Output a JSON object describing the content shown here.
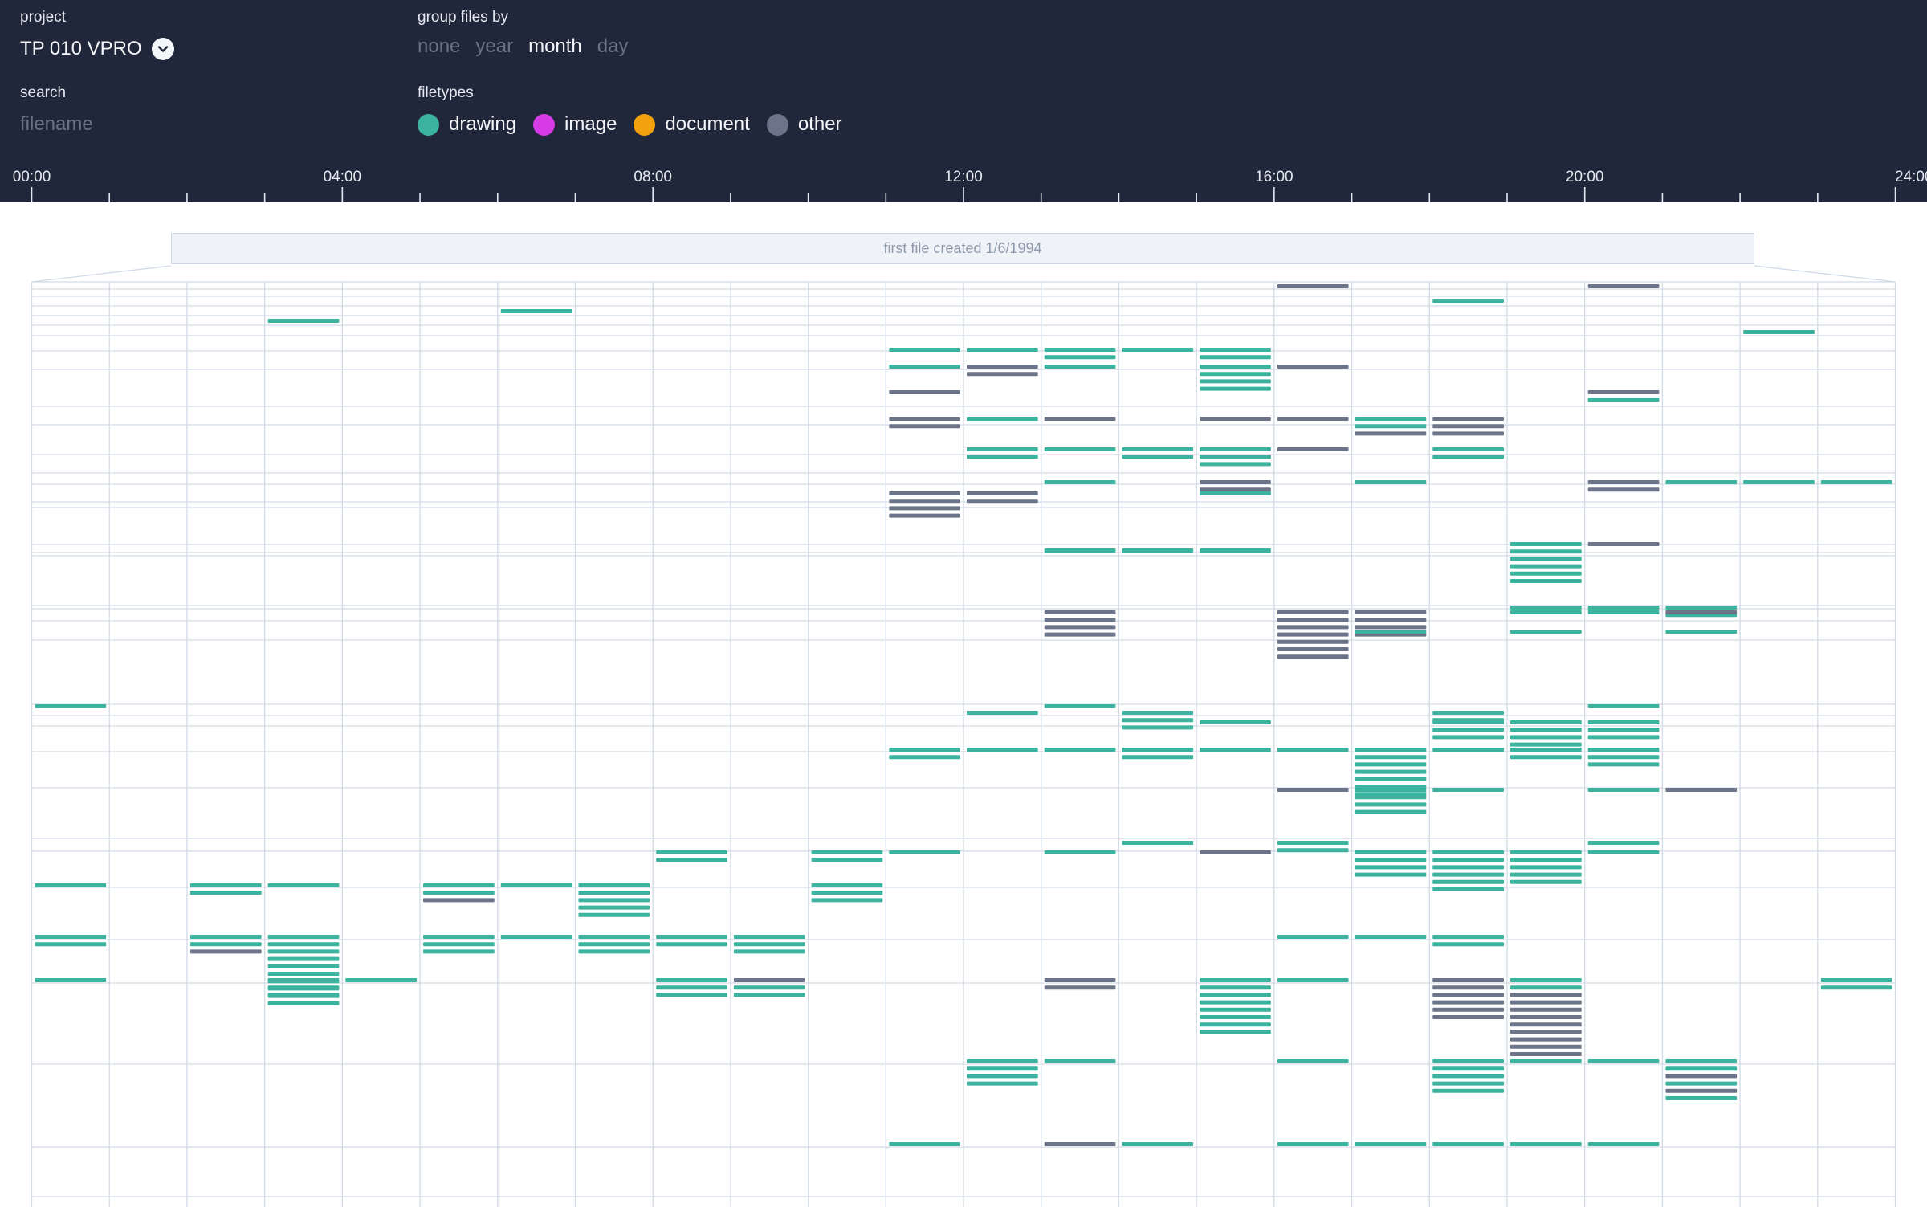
{
  "header": {
    "project_label": "project",
    "project_name": "TP 010 VPRO",
    "group_label": "group files by",
    "group_options": [
      {
        "label": "none",
        "active": false
      },
      {
        "label": "year",
        "active": false
      },
      {
        "label": "month",
        "active": true
      },
      {
        "label": "day",
        "active": false
      }
    ],
    "search_label": "search",
    "search_placeholder": "filename",
    "search_value": "",
    "filetypes_label": "filetypes",
    "filetypes": [
      {
        "key": "drawing",
        "label": "drawing",
        "color": "#3bb39e"
      },
      {
        "key": "image",
        "label": "image",
        "color": "#d63be6"
      },
      {
        "key": "document",
        "label": "document",
        "color": "#f2a20f"
      },
      {
        "key": "other",
        "label": "other",
        "color": "#6b7488"
      }
    ]
  },
  "timeline": {
    "hour_labels": [
      "00:00",
      "04:00",
      "08:00",
      "12:00",
      "16:00",
      "20:00",
      "24:00"
    ],
    "first_file_text": "first file created 1/6/1994"
  },
  "chart_data": {
    "type": "heatmap",
    "description_axis": "hour of day",
    "x_range_hours": [
      0,
      24
    ],
    "bucket_hours": 1,
    "row_unit": "month",
    "colors": {
      "drawing": "#3bb39e",
      "other": "#6b7488"
    },
    "rows": [
      {
        "cells": [
          [
            16,
            "o"
          ],
          [
            20,
            "o"
          ]
        ]
      },
      {
        "cells": [
          [
            18,
            "d"
          ]
        ]
      },
      {
        "cells": [
          [
            6,
            "d"
          ]
        ]
      },
      {
        "cells": [
          [
            3,
            "d"
          ]
        ]
      },
      {
        "cells": [
          [
            22,
            "d"
          ]
        ]
      },
      {
        "cells": [
          [
            11,
            "d"
          ],
          [
            12,
            "d"
          ],
          [
            13,
            "dd"
          ],
          [
            14,
            "d"
          ],
          [
            15,
            "dd"
          ]
        ]
      },
      {
        "cells": [
          [
            11,
            "d"
          ],
          [
            12,
            "oo"
          ],
          [
            13,
            "d"
          ],
          [
            15,
            "dddd"
          ],
          [
            16,
            "o"
          ]
        ]
      },
      {
        "cells": [
          [
            11,
            "o"
          ],
          [
            20,
            "od"
          ]
        ]
      },
      {
        "cells": [
          [
            11,
            "oo"
          ],
          [
            12,
            "d"
          ],
          [
            13,
            "o"
          ],
          [
            15,
            "o"
          ],
          [
            16,
            "o"
          ],
          [
            17,
            "ddo"
          ],
          [
            18,
            "ooo"
          ]
        ]
      },
      {
        "cells": [
          [
            12,
            "dd"
          ],
          [
            13,
            "d"
          ],
          [
            14,
            "dd"
          ],
          [
            15,
            "ddd"
          ],
          [
            16,
            "o"
          ],
          [
            18,
            "dd"
          ]
        ]
      },
      {
        "cells": []
      },
      {
        "cells": [
          [
            13,
            "d"
          ],
          [
            15,
            "oo"
          ],
          [
            17,
            "d"
          ],
          [
            20,
            "oo"
          ],
          [
            21,
            "d"
          ],
          [
            22,
            "d"
          ],
          [
            23,
            "d"
          ]
        ]
      },
      {
        "cells": []
      },
      {
        "cells": [
          [
            11,
            "oooo"
          ],
          [
            12,
            "oo"
          ],
          [
            15,
            "d"
          ]
        ]
      },
      {
        "cells": []
      },
      {
        "cells": []
      },
      {
        "cells": [
          [
            19,
            "dddddd"
          ],
          [
            20,
            "o"
          ]
        ]
      },
      {
        "cells": []
      },
      {
        "cells": [
          [
            13,
            "d"
          ],
          [
            14,
            "d"
          ],
          [
            15,
            "d"
          ]
        ]
      },
      {
        "cells": [
          [
            19,
            "d"
          ],
          [
            20,
            "d"
          ],
          [
            21,
            "dd"
          ]
        ]
      },
      {
        "cells": [
          [
            13,
            "oooo"
          ],
          [
            16,
            "ooooooo"
          ],
          [
            17,
            "oooo"
          ],
          [
            19,
            "d"
          ],
          [
            20,
            "d"
          ],
          [
            21,
            "o"
          ]
        ]
      },
      {
        "cells": [
          [
            17,
            "d"
          ],
          [
            19,
            "d"
          ],
          [
            21,
            "d"
          ]
        ]
      },
      {
        "cells": [
          [
            0,
            "d"
          ],
          [
            13,
            "d"
          ],
          [
            20,
            "d"
          ]
        ]
      },
      {
        "cells": [
          [
            12,
            "d"
          ],
          [
            14,
            "ddd"
          ],
          [
            18,
            "dd"
          ]
        ]
      },
      {
        "cells": [
          [
            15,
            "d"
          ],
          [
            18,
            "ddd"
          ],
          [
            19,
            "dddd"
          ],
          [
            20,
            "ddd"
          ]
        ]
      },
      {
        "cells": [
          [
            11,
            "dd"
          ],
          [
            12,
            "d"
          ],
          [
            13,
            "d"
          ],
          [
            14,
            "dd"
          ],
          [
            15,
            "d"
          ],
          [
            16,
            "d"
          ],
          [
            17,
            "ddddddd"
          ],
          [
            18,
            "d"
          ],
          [
            19,
            "dd"
          ],
          [
            20,
            "ddd"
          ]
        ]
      },
      {
        "cells": [
          [
            16,
            "o"
          ],
          [
            17,
            "dddd"
          ],
          [
            18,
            "d"
          ],
          [
            20,
            "d"
          ],
          [
            21,
            "o"
          ]
        ]
      },
      {
        "cells": [
          [
            14,
            "d"
          ],
          [
            16,
            "dd"
          ],
          [
            20,
            "d"
          ]
        ]
      },
      {
        "cells": [
          [
            8,
            "dd"
          ],
          [
            10,
            "dd"
          ],
          [
            11,
            "d"
          ],
          [
            13,
            "d"
          ],
          [
            15,
            "o"
          ],
          [
            17,
            "dddd"
          ],
          [
            18,
            "dddddd"
          ],
          [
            19,
            "ddddd"
          ],
          [
            20,
            "d"
          ]
        ]
      },
      {
        "cells": [
          [
            0,
            "d"
          ],
          [
            2,
            "dd"
          ],
          [
            3,
            "d"
          ],
          [
            5,
            "ddo"
          ],
          [
            6,
            "d"
          ],
          [
            7,
            "ddddd"
          ],
          [
            10,
            "ddd"
          ]
        ]
      },
      {
        "cells": [
          [
            0,
            "dd"
          ],
          [
            2,
            "ddo"
          ],
          [
            3,
            "dddddddddd"
          ],
          [
            5,
            "ddd"
          ],
          [
            6,
            "d"
          ],
          [
            7,
            "ddd"
          ],
          [
            8,
            "dd"
          ],
          [
            9,
            "ddd"
          ],
          [
            16,
            "d"
          ],
          [
            17,
            "d"
          ],
          [
            18,
            "dd"
          ]
        ]
      },
      {
        "cells": [
          [
            0,
            "d"
          ],
          [
            3,
            "ddd"
          ],
          [
            4,
            "d"
          ],
          [
            8,
            "ddd"
          ],
          [
            9,
            "odd"
          ],
          [
            13,
            "oo"
          ],
          [
            15,
            "dddddddd"
          ],
          [
            16,
            "d"
          ],
          [
            18,
            "oooooo"
          ],
          [
            19,
            "ddooooooooo"
          ],
          [
            23,
            "dd"
          ]
        ]
      },
      {
        "cells": [
          [
            12,
            "dddd"
          ],
          [
            13,
            "d"
          ],
          [
            16,
            "d"
          ],
          [
            18,
            "ddddd"
          ],
          [
            19,
            "d"
          ],
          [
            20,
            "d"
          ],
          [
            21,
            "ddodod"
          ]
        ]
      },
      {
        "cells": [
          [
            11,
            "d"
          ],
          [
            13,
            "o"
          ],
          [
            14,
            "d"
          ],
          [
            16,
            "d"
          ],
          [
            17,
            "d"
          ],
          [
            18,
            "d"
          ],
          [
            19,
            "d"
          ],
          [
            20,
            "d"
          ]
        ]
      }
    ]
  }
}
